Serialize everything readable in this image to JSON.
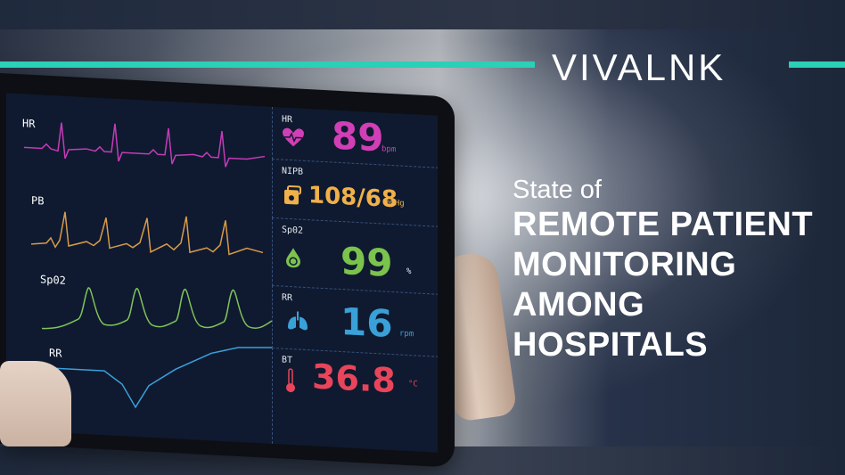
{
  "brand": {
    "logo": "VIVALNK",
    "accent": "#2ad0b7"
  },
  "headline": {
    "line1": "State of",
    "line2": "REMOTE PATIENT",
    "line3": "MONITORING",
    "line4": "AMONG",
    "line5": "HOSPITALS"
  },
  "monitor": {
    "waves": [
      {
        "label": "HR",
        "color": "#c43bb6"
      },
      {
        "label": "PB",
        "color": "#d79a4a"
      },
      {
        "label": "Sp02",
        "color": "#7fc35a"
      },
      {
        "label": "RR",
        "color": "#3aa0d8"
      }
    ],
    "vitals": [
      {
        "label": "HR",
        "value": "89",
        "unit": "bpm",
        "color": "#d13fb6",
        "icon": "heart-icon"
      },
      {
        "label": "NIPB",
        "value": "108/68",
        "unit": "mmHg",
        "color": "#f0b04a",
        "icon": "blood-pressure-icon"
      },
      {
        "label": "Sp02",
        "value": "99",
        "unit": "%",
        "color": "#7cc34d",
        "icon": "oxygen-drop-icon"
      },
      {
        "label": "RR",
        "value": "16",
        "unit": "rpm",
        "color": "#3aa0d8",
        "icon": "lungs-icon"
      },
      {
        "label": "BT",
        "value": "36.8",
        "unit": "°C",
        "color": "#e8455a",
        "icon": "thermometer-icon"
      }
    ]
  }
}
